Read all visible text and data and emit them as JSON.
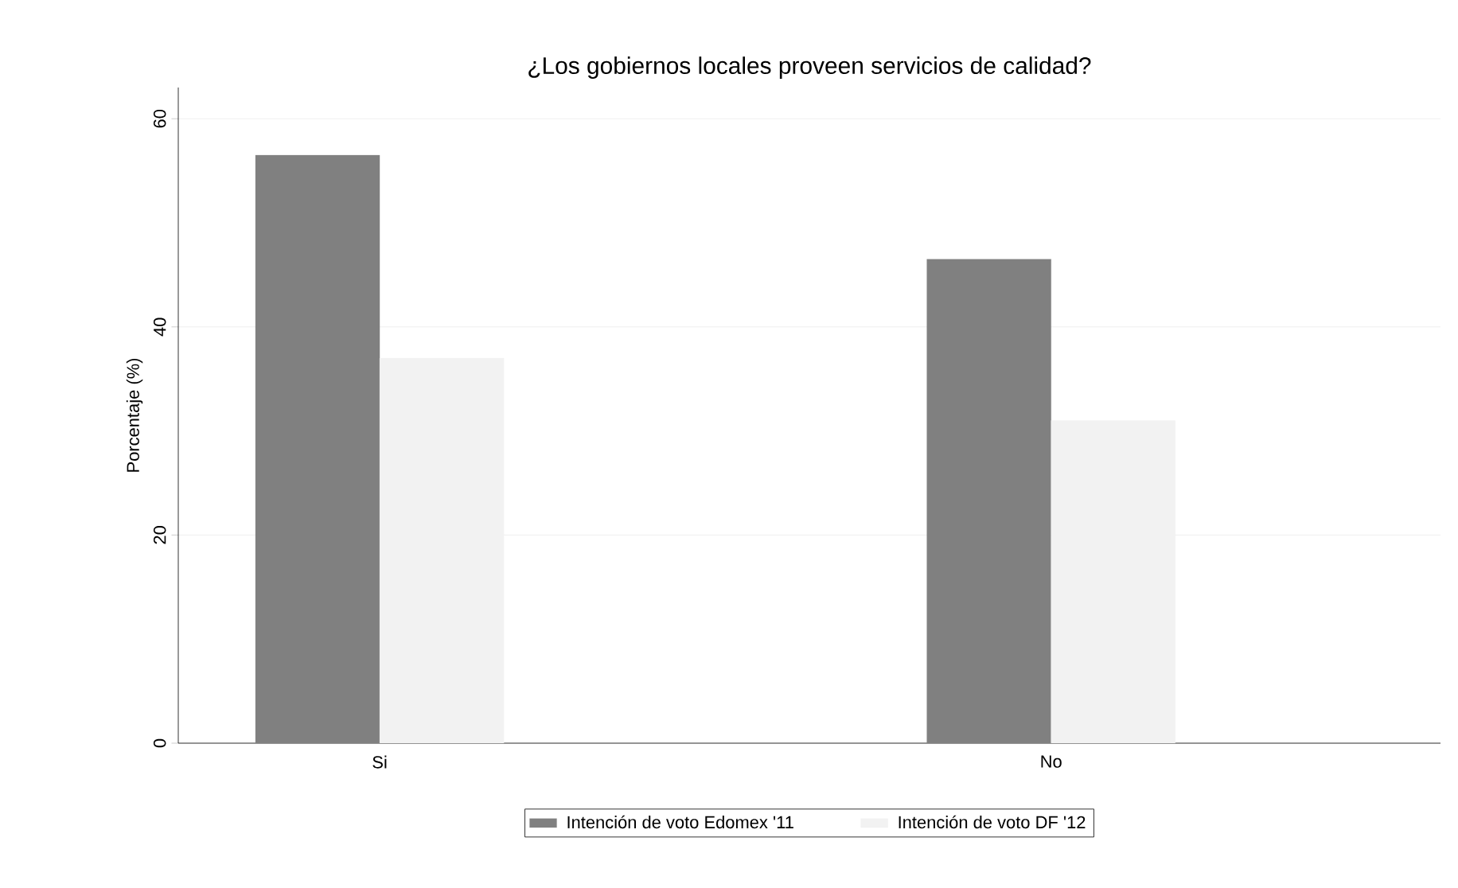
{
  "chart_data": {
    "type": "bar",
    "title": "¿Los gobiernos locales proveen servicios de calidad?",
    "ylabel": "Porcentaje (%)",
    "categories": [
      "Si",
      "No"
    ],
    "series": [
      {
        "name": "Intención de voto Edomex '11",
        "color": "#808080",
        "values": [
          56.5,
          46.5
        ]
      },
      {
        "name": "Intención de voto DF '12",
        "color": "#f2f2f2",
        "values": [
          37,
          31
        ]
      }
    ],
    "ylim": [
      0,
      63
    ],
    "yticks": [
      0,
      20,
      40,
      60
    ],
    "grid": "y",
    "legend": "bottom"
  }
}
